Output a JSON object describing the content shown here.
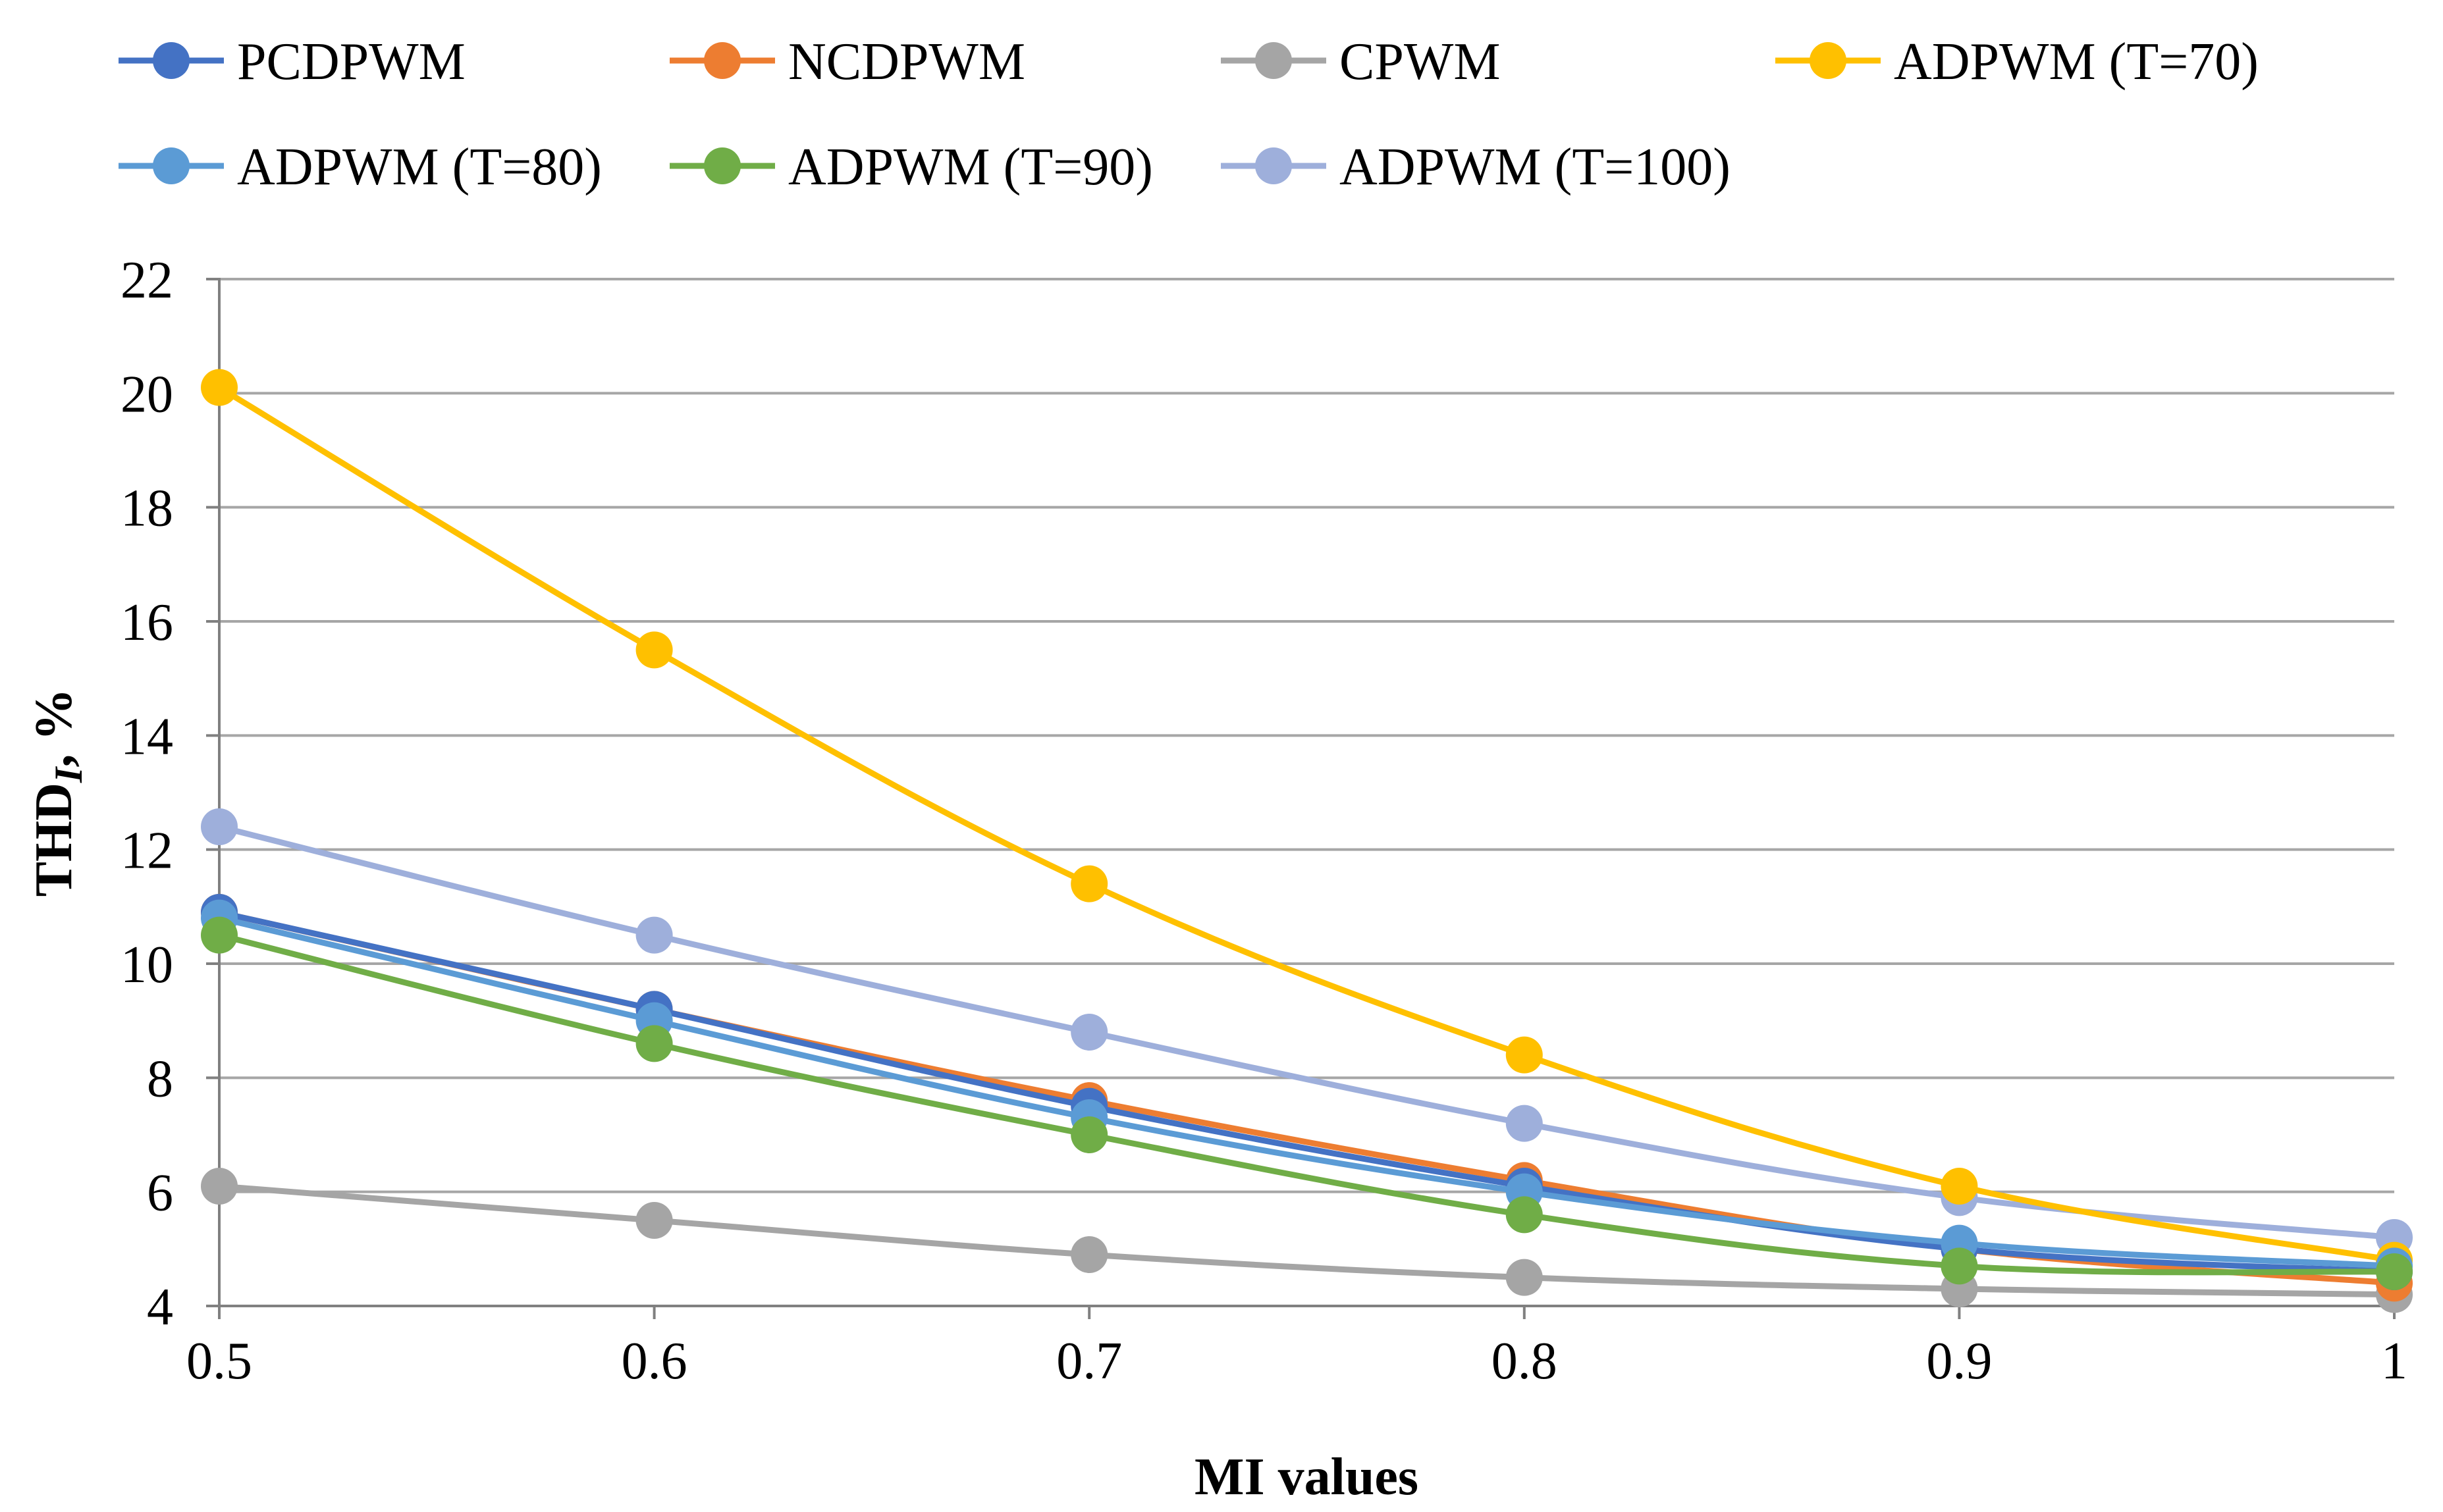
{
  "chart_data": {
    "type": "line",
    "title": "",
    "xlabel": "MI values",
    "ylabel": {
      "main": "THD",
      "subscript": "I",
      "suffix": ", %"
    },
    "x": [
      0.5,
      0.6,
      0.7,
      0.8,
      0.9,
      1
    ],
    "x_tick_labels": [
      "0.5",
      "0.6",
      "0.7",
      "0.8",
      "0.9",
      "1"
    ],
    "xlim": [
      0.5,
      1
    ],
    "ylim": [
      4,
      22
    ],
    "y_ticks": [
      4,
      6,
      8,
      10,
      12,
      14,
      16,
      18,
      20,
      22
    ],
    "y_tick_labels": [
      "4",
      "6",
      "8",
      "10",
      "12",
      "14",
      "16",
      "18",
      "20",
      "22"
    ],
    "grid": true,
    "legend_position": "top",
    "series": [
      {
        "name": "PCDPWM",
        "color": "#4472c4",
        "values": [
          10.9,
          9.2,
          7.5,
          6.1,
          5.0,
          4.6
        ]
      },
      {
        "name": "NCDPWM",
        "color": "#ed7d31",
        "values": [
          10.9,
          9.2,
          7.6,
          6.2,
          5.0,
          4.4
        ]
      },
      {
        "name": "CPWM",
        "color": "#a5a5a5",
        "values": [
          6.1,
          5.5,
          4.9,
          4.5,
          4.3,
          4.2
        ]
      },
      {
        "name": "ADPWM (T=70)",
        "color": "#ffc000",
        "values": [
          20.1,
          15.5,
          11.4,
          8.4,
          6.1,
          4.8
        ]
      },
      {
        "name": "ADPWM (T=80)",
        "color": "#5b9bd5",
        "values": [
          10.8,
          9.0,
          7.3,
          6.0,
          5.1,
          4.7
        ]
      },
      {
        "name": "ADPWM (T=90)",
        "color": "#70ad47",
        "values": [
          10.5,
          8.6,
          7.0,
          5.6,
          4.7,
          4.6
        ]
      },
      {
        "name": "ADPWM (T=100)",
        "color": "#9eafdb",
        "values": [
          12.4,
          10.5,
          8.8,
          7.2,
          5.9,
          5.2
        ]
      }
    ]
  }
}
